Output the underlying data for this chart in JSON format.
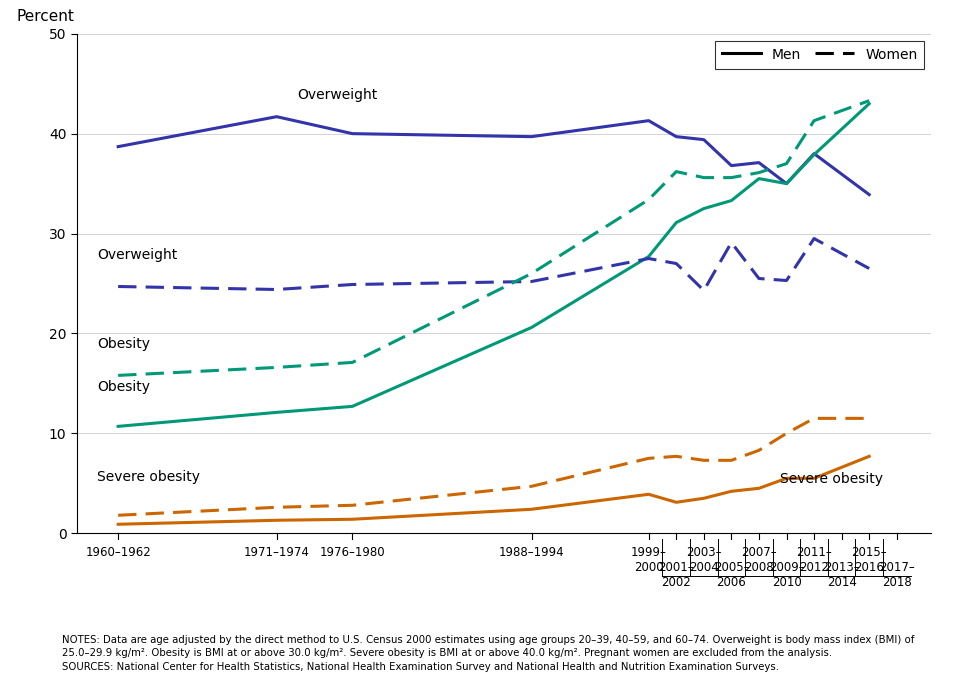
{
  "ylabel": "Percent",
  "ylim": [
    0,
    50
  ],
  "yticks": [
    0,
    10,
    20,
    30,
    40,
    50
  ],
  "background_color": "#ffffff",
  "x_positions": [
    0,
    1,
    2,
    3,
    4,
    5,
    6,
    7,
    8,
    9,
    10,
    11
  ],
  "men_overweight": [
    38.7,
    41.7,
    40.0,
    39.7,
    41.3,
    39.7,
    39.4,
    36.8,
    37.1,
    35.0,
    38.0,
    33.9
  ],
  "women_overweight": [
    24.7,
    24.4,
    24.9,
    25.2,
    27.5,
    27.0,
    24.3,
    29.1,
    25.5,
    25.3,
    29.5,
    26.5
  ],
  "men_obesity": [
    10.7,
    12.1,
    12.7,
    20.6,
    27.7,
    31.1,
    32.5,
    33.3,
    35.5,
    35.0,
    37.9,
    43.0
  ],
  "women_obesity": [
    15.8,
    16.6,
    17.1,
    26.0,
    33.4,
    36.2,
    35.6,
    35.6,
    36.1,
    37.0,
    41.3,
    43.3
  ],
  "men_severe_obesity": [
    0.9,
    1.3,
    1.4,
    2.4,
    3.9,
    3.1,
    3.5,
    4.2,
    4.5,
    5.5,
    5.5,
    7.7
  ],
  "women_severe_obesity": [
    1.8,
    2.6,
    2.8,
    4.7,
    7.5,
    7.7,
    7.3,
    7.3,
    8.3,
    10.0,
    11.5,
    11.5
  ],
  "overweight_color": "#3333aa",
  "obesity_color": "#009977",
  "severe_obesity_color": "#cc6600",
  "notes_line1": "NOTES: Data are age adjusted by the direct method to U.S. Census 2000 estimates using age groups 20–39, 40–59, and 60–74. Overweight is body mass index (BMI) of",
  "notes_line2": "25.0–29.9 kg/m². Obesity is BMI at or above 30.0 kg/m². Severe obesity is BMI at or above 40.0 kg/m². Pregnant women are excluded from the analysis.",
  "sources_line": "SOURCES: National Center for Health Statistics, National Health Examination Survey and National Health and Nutrition Examination Surveys."
}
